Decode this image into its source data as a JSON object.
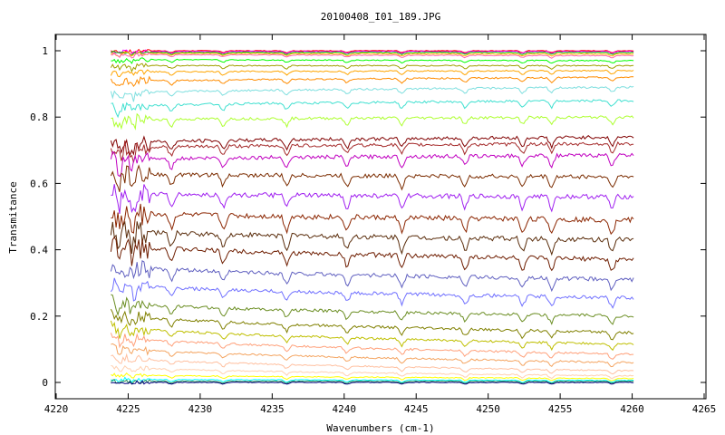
{
  "chart_data": {
    "type": "line",
    "title": "20100408_I01_189.JPG",
    "xlabel": "Wavenumbers (cm-1)",
    "ylabel": "Transmitance",
    "xlim": [
      4220,
      4265
    ],
    "ylim": [
      -0.05,
      1.05
    ],
    "x_ticks": [
      4220,
      4225,
      4230,
      4235,
      4240,
      4245,
      4250,
      4255,
      4260,
      4265
    ],
    "x_tick_labels": [
      "4220",
      "4225",
      "4230",
      "4235",
      "4240",
      "4245",
      "4250",
      "4255",
      "4260",
      "4265"
    ],
    "y_ticks": [
      0,
      0.2,
      0.4,
      0.6,
      0.8,
      1
    ],
    "y_tick_labels": [
      "0",
      "0.2",
      "0.4",
      "0.6",
      "0.8",
      "1"
    ],
    "grid": false,
    "legend": "none",
    "x_range": [
      4223.8,
      4260.1
    ],
    "absorption_lines": [
      4224.4,
      4225.3,
      4228.0,
      4231.6,
      4236.0,
      4240.2,
      4244.0,
      4248.4,
      4252.4,
      4254.4,
      4258.6
    ],
    "series": [
      {
        "color": "#ff0000",
        "start": 1.0,
        "end": 1.0
      },
      {
        "color": "#ff00ff",
        "start": 0.998,
        "end": 0.998
      },
      {
        "color": "#00c000",
        "start": 0.995,
        "end": 0.995
      },
      {
        "color": "#ffb000",
        "start": 0.993,
        "end": 0.99
      },
      {
        "color": "#ff69b4",
        "start": 0.99,
        "end": 0.985
      },
      {
        "color": "#00ff00",
        "start": 0.975,
        "end": 0.97
      },
      {
        "color": "#a0a000",
        "start": 0.955,
        "end": 0.955
      },
      {
        "color": "#ffa500",
        "start": 0.935,
        "end": 0.94
      },
      {
        "color": "#ff8c00",
        "start": 0.905,
        "end": 0.92
      },
      {
        "color": "#7fdfdf",
        "start": 0.87,
        "end": 0.89
      },
      {
        "color": "#40e0d0",
        "start": 0.83,
        "end": 0.85
      },
      {
        "color": "#adff2f",
        "start": 0.79,
        "end": 0.8
      },
      {
        "color": "#800000",
        "start": 0.72,
        "end": 0.74
      },
      {
        "color": "#a52a2a",
        "start": 0.705,
        "end": 0.72
      },
      {
        "color": "#c000c0",
        "start": 0.67,
        "end": 0.685
      },
      {
        "color": "#7b2c00",
        "start": 0.63,
        "end": 0.62
      },
      {
        "color": "#a020f0",
        "start": 0.57,
        "end": 0.56
      },
      {
        "color": "#8b2500",
        "start": 0.515,
        "end": 0.49
      },
      {
        "color": "#5a2d0c",
        "start": 0.46,
        "end": 0.43
      },
      {
        "color": "#6e1d00",
        "start": 0.42,
        "end": 0.37
      },
      {
        "color": "#6060c0",
        "start": 0.355,
        "end": 0.31
      },
      {
        "color": "#7070ff",
        "start": 0.3,
        "end": 0.255
      },
      {
        "color": "#6b8e23",
        "start": 0.245,
        "end": 0.2
      },
      {
        "color": "#808000",
        "start": 0.21,
        "end": 0.15
      },
      {
        "color": "#bfbf00",
        "start": 0.175,
        "end": 0.115
      },
      {
        "color": "#ffa07a",
        "start": 0.145,
        "end": 0.085
      },
      {
        "color": "#f4a460",
        "start": 0.11,
        "end": 0.06
      },
      {
        "color": "#ffc0a0",
        "start": 0.08,
        "end": 0.035
      },
      {
        "color": "#ffd0b0",
        "start": 0.05,
        "end": 0.02
      },
      {
        "color": "#ffff00",
        "start": 0.025,
        "end": 0.012
      },
      {
        "color": "#00ffff",
        "start": 0.01,
        "end": 0.006
      },
      {
        "color": "#2e8b57",
        "start": 0.004,
        "end": 0.003
      },
      {
        "color": "#000080",
        "start": 0.0,
        "end": 0.0
      }
    ]
  }
}
